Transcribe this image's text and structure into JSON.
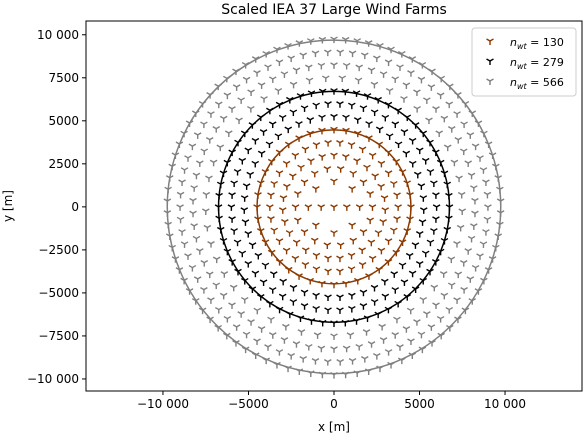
{
  "chart_data": {
    "type": "scatter",
    "title": "Scaled IEA 37 Large Wind Farms",
    "xlabel": "x [m]",
    "ylabel": "y [m]",
    "xlim": [
      -14500,
      14500
    ],
    "ylim": [
      -10700,
      10800
    ],
    "aspect": "equal",
    "xticks": [
      -10000,
      -5000,
      0,
      5000,
      10000
    ],
    "xtick_labels": [
      "−10 000",
      "−5000",
      "0",
      "5000",
      "10 000"
    ],
    "yticks": [
      -10000,
      -7500,
      -5000,
      -2500,
      0,
      2500,
      5000,
      7500,
      10000
    ],
    "ytick_labels": [
      "−10 000",
      "−7500",
      "−5000",
      "−2500",
      "0",
      "2500",
      "5000",
      "7500",
      "10 000"
    ],
    "grid": false,
    "legend_position": "top-right",
    "marker": "tri-down",
    "series": [
      {
        "name": "n_wt = 130",
        "color": "#8b3a00",
        "boundary_radius": 4500,
        "rings": [
          {
            "radius": 4500,
            "count": 40
          },
          {
            "radius": 3750,
            "count": 34
          },
          {
            "radius": 3000,
            "count": 27
          },
          {
            "radius": 2250,
            "count": 18
          },
          {
            "radius": 1500,
            "count": 8
          },
          {
            "radius": 750,
            "count": 2
          },
          {
            "radius": 0,
            "count": 1
          }
        ]
      },
      {
        "name": "n_wt = 279",
        "color": "#000000",
        "boundary_radius": 6750,
        "rings": [
          {
            "radius": 6750,
            "count": 64
          },
          {
            "radius": 6000,
            "count": 54
          },
          {
            "radius": 5250,
            "count": 47
          }
        ]
      },
      {
        "name": "n_wt = 566",
        "color": "#808080",
        "boundary_radius": 9750,
        "rings": [
          {
            "radius": 9750,
            "count": 90
          },
          {
            "radius": 9000,
            "count": 78
          },
          {
            "radius": 8250,
            "count": 70
          },
          {
            "radius": 7500,
            "count": 49
          }
        ]
      }
    ],
    "legend": {
      "entries": [
        {
          "prefix": "n",
          "sub": "wt",
          "value": " = 130",
          "color": "#8b3a00"
        },
        {
          "prefix": "n",
          "sub": "wt",
          "value": " = 279",
          "color": "#000000"
        },
        {
          "prefix": "n",
          "sub": "wt",
          "value": " = 566",
          "color": "#808080"
        }
      ]
    }
  }
}
